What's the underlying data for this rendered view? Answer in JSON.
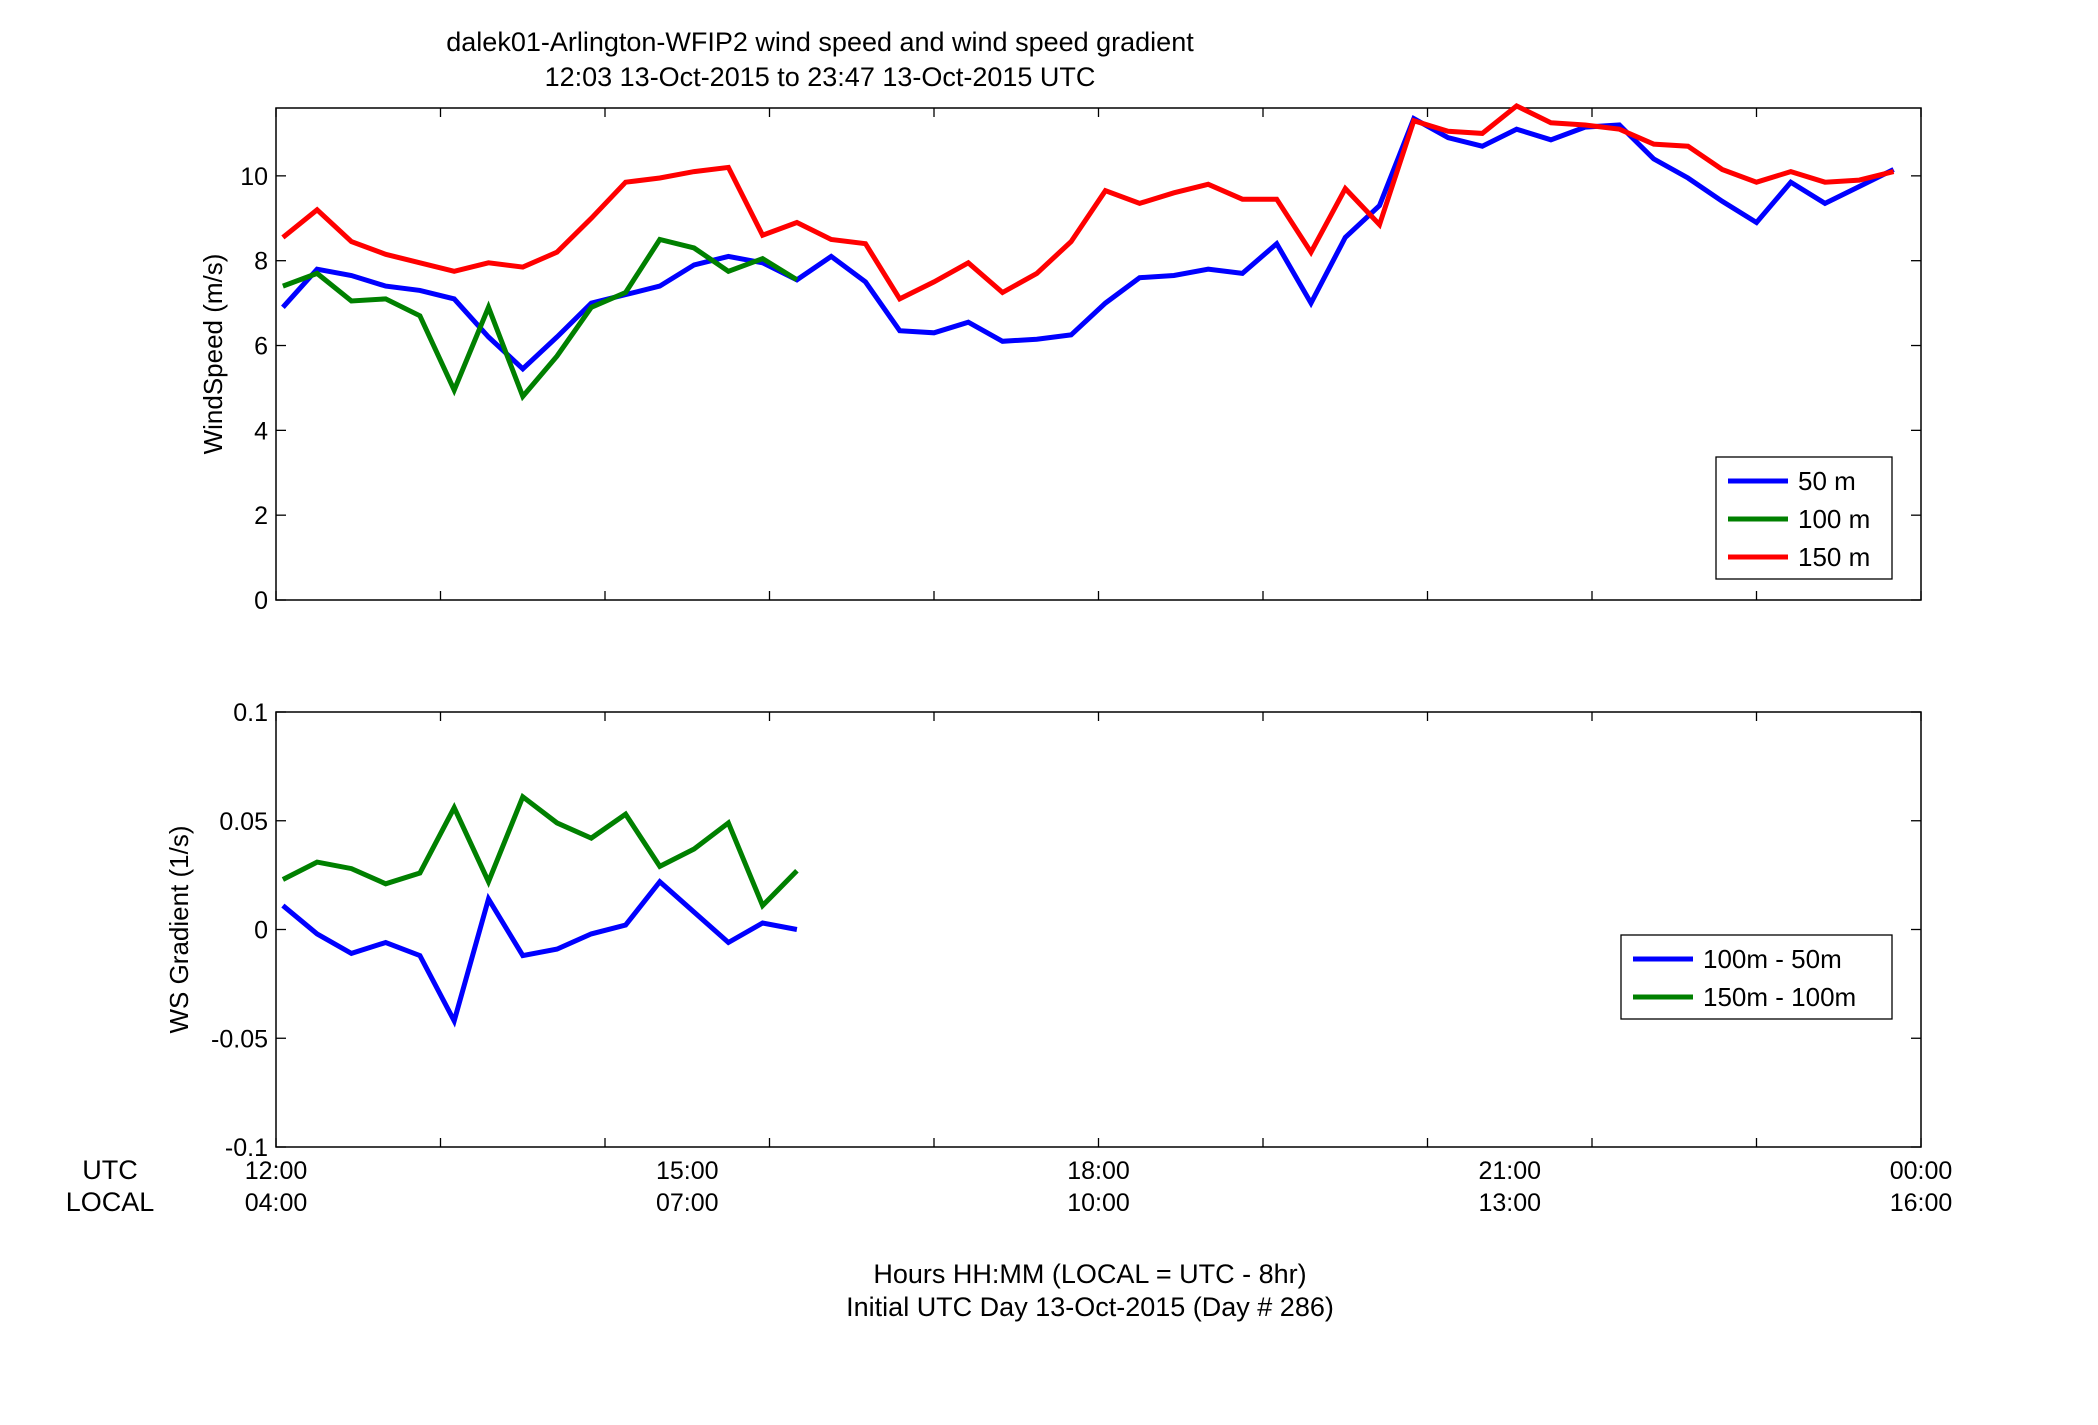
{
  "figure": {
    "title_line1": "dalek01-Arlington-WFIP2  wind speed and wind speed gradient",
    "title_line2": "12:03 13-Oct-2015 to 23:47 13-Oct-2015  UTC",
    "row_label_utc": "UTC",
    "row_label_local": "LOCAL",
    "xlabel_line1": "Hours HH:MM  (LOCAL = UTC - 8hr)",
    "xlabel_line2": "Initial UTC Day 13-Oct-2015 (Day # 286)"
  },
  "colors": {
    "blue": "#0000ff",
    "green": "#008000",
    "red": "#ff0000"
  },
  "chart_data": [
    {
      "type": "line",
      "ylabel": "WindSpeed (m/s)",
      "xlim": [
        12,
        24
      ],
      "ylim": [
        0,
        11.6
      ],
      "yticks": [
        0,
        2,
        4,
        6,
        8,
        10
      ],
      "ytick_labels": [
        "0",
        "2",
        "4",
        "6",
        "8",
        "10"
      ],
      "legend_position": "lower-right",
      "series": [
        {
          "name": "50 m",
          "color": "blue",
          "x": [
            12.05,
            12.3,
            12.55,
            12.8,
            13.05,
            13.3,
            13.55,
            13.8,
            14.05,
            14.3,
            14.55,
            14.8,
            15.05,
            15.3,
            15.55,
            15.8,
            16.05,
            16.3,
            16.55,
            16.8,
            17.05,
            17.3,
            17.55,
            17.8,
            18.05,
            18.3,
            18.55,
            18.8,
            19.05,
            19.3,
            19.55,
            19.8,
            20.05,
            20.3,
            20.55,
            20.8,
            21.05,
            21.3,
            21.55,
            21.8,
            22.05,
            22.3,
            22.55,
            22.8,
            23.05,
            23.3,
            23.55,
            23.8
          ],
          "y": [
            6.9,
            7.8,
            7.65,
            7.4,
            7.3,
            7.1,
            6.2,
            5.45,
            6.2,
            7.0,
            7.2,
            7.4,
            7.9,
            8.1,
            7.95,
            7.55,
            8.1,
            7.5,
            6.35,
            6.3,
            6.55,
            6.1,
            6.15,
            6.25,
            7.0,
            7.6,
            7.65,
            7.8,
            7.7,
            8.4,
            7.0,
            8.55,
            9.3,
            11.35,
            10.9,
            10.7,
            11.1,
            10.85,
            11.15,
            11.2,
            10.4,
            9.95,
            9.4,
            8.9,
            9.85,
            9.35,
            9.75,
            10.15
          ]
        },
        {
          "name": "100 m",
          "color": "green",
          "x": [
            12.05,
            12.3,
            12.55,
            12.8,
            13.05,
            13.3,
            13.55,
            13.8,
            14.05,
            14.3,
            14.55,
            14.8,
            15.05,
            15.3,
            15.55,
            15.8
          ],
          "y": [
            7.4,
            7.7,
            7.05,
            7.1,
            6.7,
            4.95,
            6.9,
            4.8,
            5.75,
            6.9,
            7.25,
            8.5,
            8.3,
            7.75,
            8.05,
            7.55
          ]
        },
        {
          "name": "150 m",
          "color": "red",
          "x": [
            12.05,
            12.3,
            12.55,
            12.8,
            13.05,
            13.3,
            13.55,
            13.8,
            14.05,
            14.3,
            14.55,
            14.8,
            15.05,
            15.3,
            15.55,
            15.8,
            16.05,
            16.3,
            16.55,
            16.8,
            17.05,
            17.3,
            17.55,
            17.8,
            18.05,
            18.3,
            18.55,
            18.8,
            19.05,
            19.3,
            19.55,
            19.8,
            20.05,
            20.3,
            20.55,
            20.8,
            21.05,
            21.3,
            21.55,
            21.8,
            22.05,
            22.3,
            22.55,
            22.8,
            23.05,
            23.3,
            23.55,
            23.8
          ],
          "y": [
            8.55,
            9.2,
            8.45,
            8.15,
            7.95,
            7.75,
            7.95,
            7.85,
            8.2,
            9.0,
            9.85,
            9.95,
            10.1,
            10.2,
            8.6,
            8.9,
            8.5,
            8.4,
            7.1,
            7.5,
            7.95,
            7.25,
            7.7,
            8.45,
            9.65,
            9.35,
            9.6,
            9.8,
            9.45,
            9.45,
            8.2,
            9.7,
            8.85,
            11.3,
            11.05,
            11.0,
            11.65,
            11.25,
            11.2,
            11.1,
            10.75,
            10.7,
            10.15,
            9.85,
            10.1,
            9.85,
            9.9,
            10.1
          ]
        }
      ]
    },
    {
      "type": "line",
      "ylabel": "WS Gradient (1/s)",
      "xlim": [
        12,
        24
      ],
      "ylim": [
        -0.1,
        0.1
      ],
      "yticks": [
        -0.1,
        -0.05,
        0,
        0.05,
        0.1
      ],
      "ytick_labels": [
        "-0.1",
        "-0.05",
        "0",
        "0.05",
        "0.1"
      ],
      "xticks": [
        12,
        15,
        18,
        21,
        24
      ],
      "xtick_labels_utc": [
        "12:00",
        "15:00",
        "18:00",
        "21:00",
        "00:00"
      ],
      "xtick_labels_local": [
        "04:00",
        "07:00",
        "10:00",
        "13:00",
        "16:00"
      ],
      "legend_position": "right",
      "series": [
        {
          "name": "100m - 50m",
          "color": "blue",
          "x": [
            12.05,
            12.3,
            12.55,
            12.8,
            13.05,
            13.3,
            13.55,
            13.8,
            14.05,
            14.3,
            14.55,
            14.8,
            15.05,
            15.3,
            15.55,
            15.8
          ],
          "y": [
            0.011,
            -0.002,
            -0.011,
            -0.006,
            -0.012,
            -0.042,
            0.014,
            -0.012,
            -0.009,
            -0.002,
            0.002,
            0.022,
            0.008,
            -0.006,
            0.003,
            0.0
          ]
        },
        {
          "name": "150m - 100m",
          "color": "green",
          "x": [
            12.05,
            12.3,
            12.55,
            12.8,
            13.05,
            13.3,
            13.55,
            13.8,
            14.05,
            14.3,
            14.55,
            14.8,
            15.05,
            15.3,
            15.55,
            15.8
          ],
          "y": [
            0.023,
            0.031,
            0.028,
            0.021,
            0.026,
            0.056,
            0.022,
            0.061,
            0.049,
            0.042,
            0.053,
            0.029,
            0.037,
            0.049,
            0.011,
            0.027
          ]
        }
      ]
    }
  ]
}
